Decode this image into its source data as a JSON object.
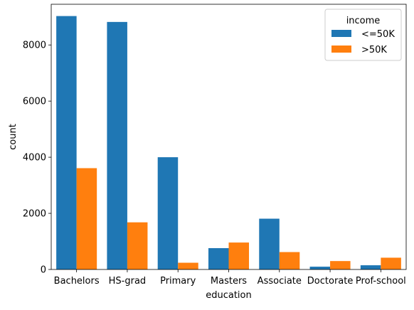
{
  "chart_data": {
    "type": "bar",
    "xlabel": "education",
    "ylabel": "count",
    "categories": [
      "Bachelors",
      "HS-grad",
      "Primary",
      "Masters",
      "Associate",
      "Doctorate",
      "Prof-school"
    ],
    "series": [
      {
        "name": "<=50K",
        "color": "#1f77b4",
        "values": [
          9030,
          8820,
          4000,
          760,
          1810,
          100,
          150
        ]
      },
      {
        "name": ">50K",
        "color": "#ff7f0e",
        "values": [
          3610,
          1680,
          240,
          960,
          620,
          300,
          420
        ]
      }
    ],
    "ylim": [
      0,
      9450
    ],
    "yticks": [
      0,
      2000,
      4000,
      6000,
      8000
    ],
    "grid": false,
    "legend": {
      "title": "income",
      "placement": "top-right"
    }
  }
}
